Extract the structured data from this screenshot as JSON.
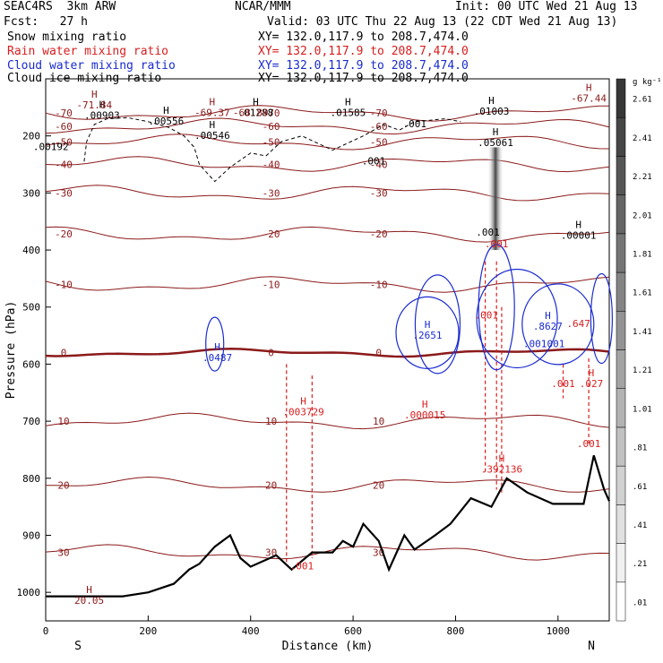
{
  "header": {
    "model": "SEAC4RS  3km ARW",
    "org": "NCAR/MMM",
    "init": "Init: 00 UTC Wed 21 Aug 13",
    "fcst": "Fcst:   27 h",
    "valid": "Valid: 03 UTC Thu 22 Aug 13 (22 CDT Wed 21 Aug 13)"
  },
  "fields": [
    {
      "name": "Snow mixing ratio",
      "xy": "XY= 132.0,117.9 to 208.7,474.0",
      "color": "#000000"
    },
    {
      "name": "Rain water mixing ratio",
      "xy": "XY= 132.0,117.9 to 208.7,474.0",
      "color": "#d81e1e"
    },
    {
      "name": "Cloud water mixing ratio",
      "xy": "XY= 132.0,117.9 to 208.7,474.0",
      "color": "#1a2bd0"
    },
    {
      "name": "Cloud ice mixing ratio",
      "xy": "XY= 132.0,117.9 to 208.7,474.0",
      "color": "#000000"
    }
  ],
  "chart_data": {
    "type": "cross-section",
    "xlabel": "Distance (km)",
    "ylabel": "Pressure (hPa)",
    "xlim": [
      0,
      1100
    ],
    "ylim": [
      1050,
      100
    ],
    "xticks": [
      0,
      200,
      400,
      600,
      800,
      1000
    ],
    "yticks": [
      200,
      300,
      400,
      500,
      600,
      700,
      800,
      900,
      1000
    ],
    "endpoints": {
      "left": "S",
      "right": "N"
    },
    "colorbar": {
      "unit": "g kg⁻¹",
      "levels": [
        ".01",
        ".21",
        ".41",
        ".61",
        ".81",
        "1.01",
        "1.21",
        "1.41",
        "1.61",
        "1.81",
        "2.01",
        "2.21",
        "2.41",
        "2.61"
      ]
    },
    "temperature_contours": {
      "color": "#8b1a1a",
      "levels": [
        -70,
        -60,
        -50,
        -40,
        -30,
        -20,
        -10,
        0,
        10,
        20,
        30
      ],
      "approx_pressure_hpa": [
        [
          -70,
          160
        ],
        [
          -60,
          183
        ],
        [
          -50,
          211
        ],
        [
          -40,
          250
        ],
        [
          -30,
          300
        ],
        [
          -20,
          372
        ],
        [
          -10,
          460
        ],
        [
          0,
          580
        ],
        [
          10,
          700
        ],
        [
          20,
          812
        ],
        [
          30,
          930
        ]
      ]
    },
    "terrain_hpa": [
      [
        0,
        1007
      ],
      [
        100,
        1007
      ],
      [
        150,
        1007
      ],
      [
        200,
        1000
      ],
      [
        250,
        985
      ],
      [
        280,
        960
      ],
      [
        300,
        950
      ],
      [
        330,
        920
      ],
      [
        360,
        900
      ],
      [
        380,
        940
      ],
      [
        400,
        955
      ],
      [
        450,
        935
      ],
      [
        480,
        960
      ],
      [
        520,
        930
      ],
      [
        560,
        930
      ],
      [
        580,
        910
      ],
      [
        600,
        920
      ],
      [
        620,
        880
      ],
      [
        650,
        910
      ],
      [
        670,
        960
      ],
      [
        700,
        900
      ],
      [
        720,
        925
      ],
      [
        760,
        900
      ],
      [
        790,
        880
      ],
      [
        830,
        835
      ],
      [
        870,
        850
      ],
      [
        900,
        800
      ],
      [
        940,
        825
      ],
      [
        990,
        845
      ],
      [
        1050,
        845
      ],
      [
        1070,
        760
      ],
      [
        1090,
        820
      ],
      [
        1100,
        840
      ]
    ],
    "snow_contour_hpa": [
      [
        75,
        245
      ],
      [
        80,
        210
      ],
      [
        95,
        180
      ],
      [
        120,
        170
      ],
      [
        160,
        168
      ],
      [
        200,
        175
      ],
      [
        240,
        185
      ],
      [
        270,
        200
      ],
      [
        290,
        220
      ],
      [
        300,
        250
      ],
      [
        330,
        280
      ],
      [
        360,
        255
      ],
      [
        400,
        230
      ],
      [
        430,
        235
      ],
      [
        460,
        210
      ],
      [
        500,
        200
      ],
      [
        560,
        225
      ],
      [
        620,
        200
      ],
      [
        660,
        180
      ],
      [
        690,
        190
      ],
      [
        720,
        175
      ],
      [
        780,
        170
      ],
      [
        810,
        175
      ]
    ],
    "cloud_ice_column_hpa": {
      "x_km": 878,
      "top": 220,
      "bottom": 400,
      "max": ".05061"
    },
    "labels": [
      {
        "x": 110,
        "p": 170,
        "text": ".00903",
        "color": "#000000",
        "h": true
      },
      {
        "x": 235,
        "p": 180,
        "text": ".00556",
        "color": "#000000",
        "h": true
      },
      {
        "x": 325,
        "p": 205,
        "text": ".00546",
        "color": "#000000",
        "h": true
      },
      {
        "x": 410,
        "p": 165,
        "text": ".01288",
        "color": "#000000",
        "h": true
      },
      {
        "x": 590,
        "p": 165,
        "text": ".01585",
        "color": "#000000",
        "h": true
      },
      {
        "x": 640,
        "p": 250,
        "text": ".001",
        "color": "#000000",
        "h": false
      },
      {
        "x": 720,
        "p": 185,
        "text": ".001",
        "color": "#000000",
        "h": false
      },
      {
        "x": 870,
        "p": 163,
        "text": ".01003",
        "color": "#000000",
        "h": true
      },
      {
        "x": 10,
        "p": 225,
        "text": ".00192",
        "color": "#000000",
        "h": false
      },
      {
        "x": 878,
        "p": 218,
        "text": ".05061",
        "color": "#000000",
        "h": true
      },
      {
        "x": 1040,
        "p": 380,
        "text": ".00001",
        "color": "#000000",
        "h": true
      },
      {
        "x": 863,
        "p": 375,
        "text": ".001",
        "color": "#000000",
        "h": false
      },
      {
        "x": 325,
        "p": 165,
        "text": "-69.37",
        "color": "#8b1a1a",
        "h": true
      },
      {
        "x": 400,
        "p": 165,
        "text": "-68.89",
        "color": "#8b1a1a",
        "h": false
      },
      {
        "x": 95,
        "p": 152,
        "text": "-71.84",
        "color": "#8b1a1a",
        "h": true
      },
      {
        "x": 1060,
        "p": 140,
        "text": "-67.44",
        "color": "#8b1a1a",
        "h": true
      },
      {
        "x": 335,
        "p": 595,
        "text": ".0487",
        "color": "#1a2bd0",
        "h": true
      },
      {
        "x": 745,
        "p": 555,
        "text": ".2651",
        "color": "#1a2bd0",
        "h": true
      },
      {
        "x": 980,
        "p": 540,
        "text": ".8627",
        "color": "#1a2bd0",
        "h": true
      },
      {
        "x": 990,
        "p": 570,
        "text": ".001",
        "color": "#1a2bd0",
        "h": false
      },
      {
        "x": 955,
        "p": 570,
        "text": ".001",
        "color": "#1a2bd0",
        "h": false
      },
      {
        "x": 503,
        "p": 690,
        "text": ".003729",
        "color": "#d81e1e",
        "h": true
      },
      {
        "x": 740,
        "p": 695,
        "text": ".000015",
        "color": "#d81e1e",
        "h": true
      },
      {
        "x": 890,
        "p": 790,
        "text": ".392136",
        "color": "#d81e1e",
        "h": true
      },
      {
        "x": 1065,
        "p": 640,
        "text": ".027",
        "color": "#d81e1e",
        "h": true
      },
      {
        "x": 1010,
        "p": 640,
        "text": ".001",
        "color": "#d81e1e",
        "h": false
      },
      {
        "x": 1040,
        "p": 535,
        "text": ".647",
        "color": "#d81e1e",
        "h": false
      },
      {
        "x": 1060,
        "p": 745,
        "text": ".001",
        "color": "#d81e1e",
        "h": false
      },
      {
        "x": 500,
        "p": 960,
        "text": ".001",
        "color": "#d81e1e",
        "h": false
      },
      {
        "x": 880,
        "p": 395,
        "text": ".001",
        "color": "#d81e1e",
        "h": false
      },
      {
        "x": 860,
        "p": 520,
        "text": ".001",
        "color": "#d81e1e",
        "h": false
      },
      {
        "x": 85,
        "p": 1020,
        "text": "20.05",
        "color": "#8b1a1a",
        "h": true
      }
    ]
  }
}
